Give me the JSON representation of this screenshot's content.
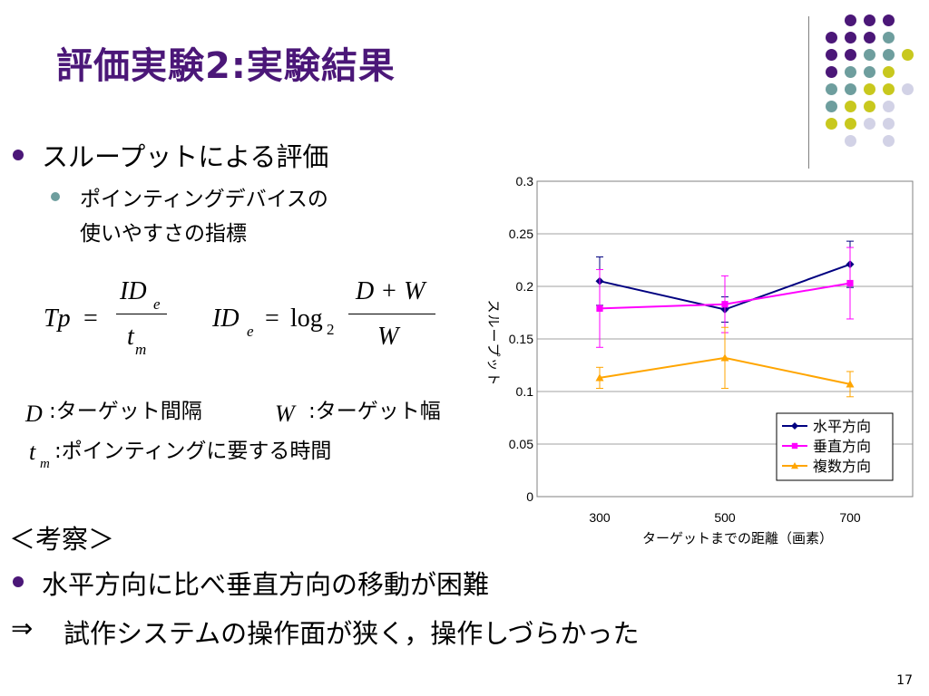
{
  "slide": {
    "title": "評価実験2:実験結果",
    "bullet1": "スループットによる評価",
    "sub_bullet_line1": "ポインティングデバイスの",
    "sub_bullet_line2": "使いやすさの指標",
    "formula": {
      "tp_lhs": "Tp",
      "id_num": "ID",
      "id_sub": "e",
      "tm_den": "t",
      "tm_sub": "m",
      "id2_lhs": "ID",
      "id2_sub": "e",
      "log": "log",
      "log_base": "2",
      "frac_num": "D + W",
      "frac_den": "W"
    },
    "def_d_var": "D",
    "def_d_text": ":ターゲット間隔",
    "def_w_var": "W",
    "def_w_text": ":ターゲット幅",
    "def_t_var": "t",
    "def_t_sub": "m",
    "def_t_text": ":ポインティングに要する時間",
    "consider_heading": "＜考察＞",
    "bullet2": "水平方向に比べ垂直方向の移動が困難",
    "conclusion_mark": "⇒",
    "conclusion_text": "試作システムの操作面が狭く，操作しづらかった",
    "page_number": "17"
  },
  "chart_data": {
    "type": "line",
    "categories": [
      "300",
      "500",
      "700"
    ],
    "x": [
      300,
      500,
      700
    ],
    "series": [
      {
        "name": "水平方向",
        "values": [
          0.205,
          0.178,
          0.221
        ],
        "errors": [
          0.023,
          0.012,
          0.022
        ],
        "color": "#000080",
        "marker": "diamond"
      },
      {
        "name": "垂直方向",
        "values": [
          0.179,
          0.183,
          0.203
        ],
        "errors": [
          0.037,
          0.027,
          0.034
        ],
        "color": "#ff00ff",
        "marker": "square"
      },
      {
        "name": "複数方向",
        "values": [
          0.113,
          0.132,
          0.107
        ],
        "errors": [
          0.01,
          0.029,
          0.012
        ],
        "color": "#ffa500",
        "marker": "triangle"
      }
    ],
    "xlabel": "ターゲットまでの距離（画素）",
    "ylabel": "スループット",
    "ylim": [
      0,
      0.3
    ],
    "yticks": [
      "0",
      "0.05",
      "0.1",
      "0.15",
      "0.2",
      "0.25",
      "0.3"
    ],
    "grid": true,
    "legend_position": "bottom-right"
  },
  "decoration": {
    "dot_colors": {
      "purple": "#4b1778",
      "teal": "#6e9e9e",
      "lime": "#c8c81e",
      "lavender": "#d2d2e6"
    }
  }
}
